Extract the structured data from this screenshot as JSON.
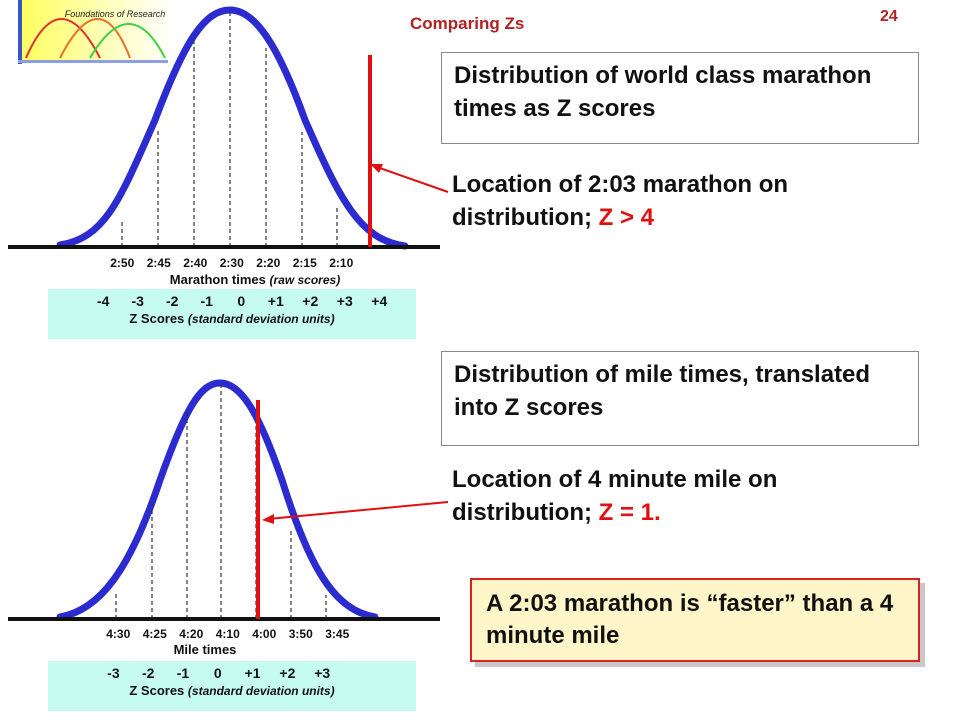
{
  "header": {
    "logo_text": "Foundations of Research",
    "title": "Comparing Zs",
    "slide_number": "24"
  },
  "marathon": {
    "box_text": "Distribution of world class marathon times as Z scores",
    "note_text": "Location of 2:03 marathon on distribution;",
    "note_z": "Z > 4",
    "raw_ticks": [
      "2:50",
      "2:45",
      "2:40",
      "2:30",
      "2:20",
      "2:15",
      "2:10"
    ],
    "axis_title": "Marathon times",
    "axis_sub": "(raw scores)",
    "z_ticks": [
      "-4",
      "-3",
      "-2",
      "-1",
      "0",
      "+1",
      "+2",
      "+3",
      "+4"
    ],
    "z_label": "Z Scores",
    "z_sub": "(standard deviation units)"
  },
  "mile": {
    "box_text": "Distribution of mile times, translated into Z scores",
    "note_text": "Location of 4 minute mile on distribution;",
    "note_z": "Z = 1.",
    "raw_ticks": [
      "4:30",
      "4:25",
      "4:20",
      "4:10",
      "4:00",
      "3:50",
      "3:45"
    ],
    "axis_title": "Mile times",
    "z_ticks": [
      "-3",
      "-2",
      "-1",
      "0",
      "+1",
      "+2",
      "+3"
    ],
    "z_label": "Z Scores",
    "z_sub": "(standard deviation units)"
  },
  "conclusion": "A 2:03 marathon is “faster” than a 4 minute mile",
  "colors": {
    "curve": "#2b2bd0",
    "marker": "#e01010",
    "z_box": "#c6fcf0",
    "conclusion_bg": "#fef5c8",
    "title": "#b22222"
  }
}
